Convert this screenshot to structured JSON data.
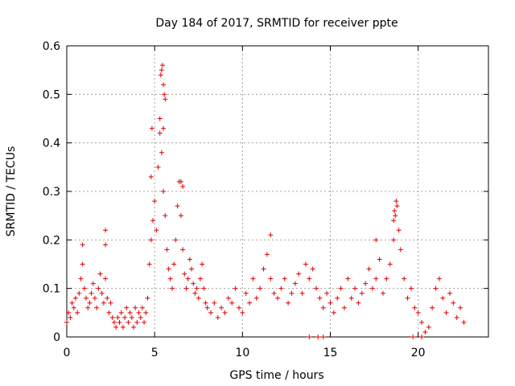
{
  "chart_data": {
    "type": "scatter",
    "title": "Day 184 of 2017, SRMTID for receiver ppte",
    "xlabel": "GPS time / hours",
    "ylabel": "SRMTID / TECUs",
    "xlim": [
      0,
      24
    ],
    "ylim": [
      0,
      0.6
    ],
    "xticks": [
      0,
      5,
      10,
      15,
      20
    ],
    "xtick_labels": [
      "0",
      "5",
      "10",
      "15",
      "20"
    ],
    "yticks": [
      0,
      0.1,
      0.2,
      0.3,
      0.4,
      0.5,
      0.6
    ],
    "ytick_labels": [
      "0",
      "0.1",
      "0.2",
      "0.3",
      "0.4",
      "0.5",
      "0.6"
    ],
    "grid": true,
    "marker": "plus",
    "color": "#e00000",
    "series": [
      {
        "name": "SRMTID",
        "x": [
          0.0,
          0.1,
          0.2,
          0.3,
          0.4,
          0.5,
          0.6,
          0.7,
          0.8,
          0.9,
          1.0,
          1.1,
          1.2,
          1.3,
          1.4,
          1.5,
          1.6,
          1.7,
          1.8,
          1.9,
          2.0,
          2.1,
          2.2,
          2.3,
          2.4,
          2.5,
          2.6,
          2.7,
          2.8,
          2.9,
          3.0,
          3.1,
          3.2,
          3.3,
          3.4,
          3.5,
          3.6,
          3.7,
          3.8,
          3.9,
          4.0,
          4.1,
          4.2,
          4.3,
          4.4,
          4.5,
          4.6,
          4.7,
          4.8,
          4.9,
          5.0,
          5.1,
          5.2,
          5.3,
          5.4,
          5.5,
          5.6,
          5.7,
          5.8,
          5.9,
          6.0,
          6.1,
          6.2,
          6.3,
          6.4,
          6.5,
          6.6,
          6.7,
          6.8,
          6.9,
          7.0,
          7.1,
          7.2,
          7.3,
          7.4,
          7.5,
          7.6,
          7.7,
          7.8,
          7.9,
          8.0,
          8.2,
          8.4,
          8.6,
          8.8,
          9.0,
          9.2,
          9.4,
          9.6,
          9.8,
          10.0,
          10.2,
          10.4,
          10.6,
          10.8,
          11.0,
          11.2,
          11.4,
          11.6,
          11.8,
          12.0,
          12.2,
          12.4,
          12.6,
          12.8,
          13.0,
          13.2,
          13.4,
          13.6,
          13.8,
          14.0,
          14.2,
          14.4,
          14.6,
          14.8,
          15.0,
          15.2,
          15.4,
          15.6,
          15.8,
          16.0,
          16.2,
          16.4,
          16.6,
          16.8,
          17.0,
          17.2,
          17.4,
          17.6,
          17.8,
          18.0,
          18.2,
          18.4,
          18.6,
          18.7,
          18.8,
          18.9,
          19.0,
          19.2,
          19.4,
          19.6,
          19.8,
          20.0,
          20.2,
          20.4,
          20.6,
          20.8,
          21.0,
          21.2,
          21.4,
          21.6,
          21.8,
          22.0,
          22.2,
          22.4,
          22.6,
          13.8,
          14.3,
          14.6,
          19.7,
          20.2,
          2.2,
          2.2,
          0.9,
          11.6,
          17.6,
          5.4,
          5.45,
          5.5,
          5.55,
          5.35,
          5.6,
          5.3,
          5.5,
          6.5,
          6.6,
          18.65,
          18.75,
          18.6,
          4.8,
          4.85
        ],
        "y": [
          0.03,
          0.05,
          0.04,
          0.07,
          0.06,
          0.08,
          0.05,
          0.09,
          0.12,
          0.15,
          0.1,
          0.08,
          0.06,
          0.07,
          0.09,
          0.11,
          0.08,
          0.06,
          0.1,
          0.13,
          0.09,
          0.07,
          0.12,
          0.08,
          0.05,
          0.07,
          0.04,
          0.03,
          0.02,
          0.04,
          0.03,
          0.05,
          0.02,
          0.04,
          0.06,
          0.03,
          0.05,
          0.04,
          0.02,
          0.06,
          0.03,
          0.05,
          0.04,
          0.06,
          0.03,
          0.05,
          0.08,
          0.15,
          0.2,
          0.24,
          0.28,
          0.22,
          0.35,
          0.45,
          0.38,
          0.3,
          0.25,
          0.18,
          0.14,
          0.12,
          0.1,
          0.15,
          0.2,
          0.27,
          0.32,
          0.25,
          0.18,
          0.13,
          0.1,
          0.12,
          0.16,
          0.14,
          0.11,
          0.09,
          0.1,
          0.08,
          0.12,
          0.15,
          0.1,
          0.07,
          0.06,
          0.05,
          0.07,
          0.04,
          0.06,
          0.05,
          0.08,
          0.07,
          0.1,
          0.06,
          0.05,
          0.09,
          0.07,
          0.12,
          0.08,
          0.1,
          0.14,
          0.17,
          0.12,
          0.09,
          0.08,
          0.1,
          0.12,
          0.07,
          0.09,
          0.11,
          0.13,
          0.09,
          0.15,
          0.12,
          0.14,
          0.1,
          0.08,
          0.06,
          0.09,
          0.07,
          0.05,
          0.08,
          0.1,
          0.06,
          0.12,
          0.08,
          0.1,
          0.07,
          0.09,
          0.11,
          0.14,
          0.1,
          0.12,
          0.16,
          0.09,
          0.12,
          0.15,
          0.2,
          0.25,
          0.27,
          0.22,
          0.18,
          0.12,
          0.08,
          0.1,
          0.06,
          0.05,
          0.03,
          0.01,
          0.02,
          0.06,
          0.1,
          0.12,
          0.08,
          0.05,
          0.09,
          0.07,
          0.04,
          0.06,
          0.03,
          0.0,
          0.0,
          0.0,
          0.0,
          0.0,
          0.22,
          0.19,
          0.19,
          0.21,
          0.2,
          0.55,
          0.56,
          0.52,
          0.5,
          0.54,
          0.49,
          0.42,
          0.43,
          0.32,
          0.31,
          0.26,
          0.28,
          0.24,
          0.33,
          0.43
        ]
      }
    ]
  }
}
